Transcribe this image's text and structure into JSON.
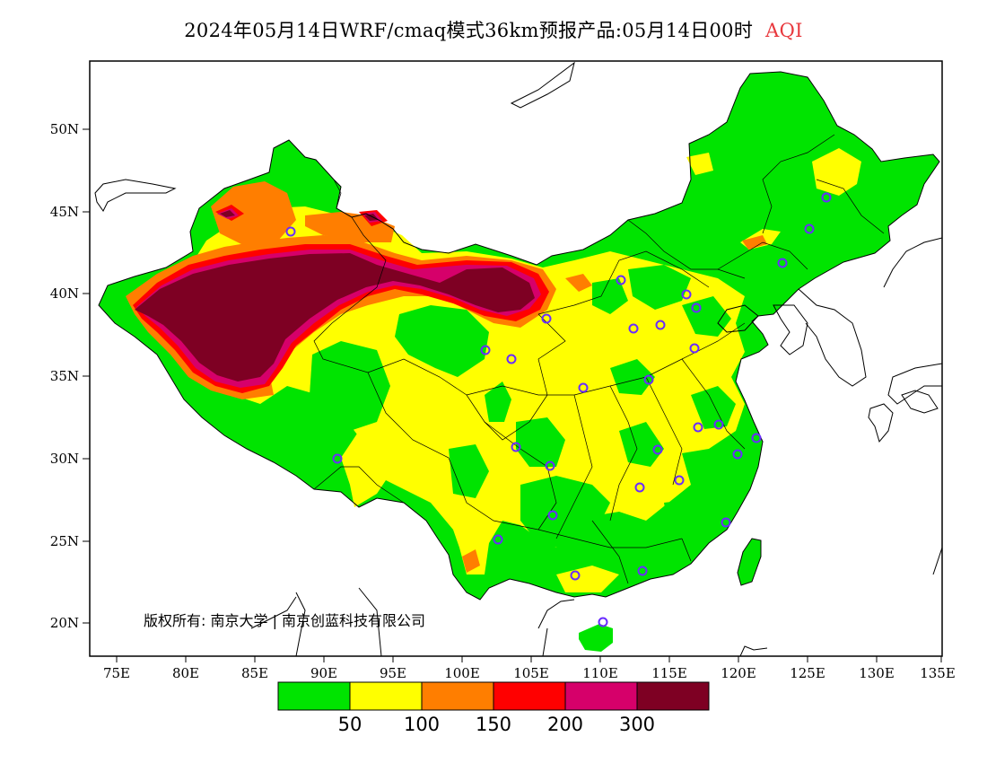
{
  "title": {
    "main": "2024年05月14日WRF/cmaq模式36km预报产品:05月14日00时",
    "variable": "AQI",
    "variable_color": "#e8383d"
  },
  "axes": {
    "lon_labels": [
      "75E",
      "80E",
      "85E",
      "90E",
      "95E",
      "100E",
      "105E",
      "110E",
      "115E",
      "120E",
      "125E",
      "130E",
      "135E"
    ],
    "lat_labels": [
      "50N",
      "45N",
      "40N",
      "35N",
      "30N",
      "25N",
      "20N"
    ]
  },
  "copyright": "版权所有: 南京大学 | 南京创蓝科技有限公司",
  "legend": {
    "thresholds": [
      "50",
      "100",
      "150",
      "200",
      "300"
    ],
    "colors": [
      "#00e400",
      "#ffff00",
      "#ff7e00",
      "#ff0000",
      "#d6006a",
      "#7e0023"
    ]
  },
  "colors": {
    "good": "#00e400",
    "moderate": "#ffff00",
    "usg": "#ff7e00",
    "unhealthy": "#ff0000",
    "very_unhealthy": "#d6006a",
    "hazardous": "#7e0023",
    "station_marker": "#6a2cff",
    "border": "#000000"
  },
  "stations_icon": "circle-station-marker"
}
